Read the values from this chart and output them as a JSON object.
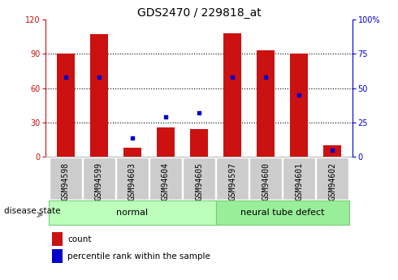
{
  "title": "GDS2470 / 229818_at",
  "categories": [
    "GSM94598",
    "GSM94599",
    "GSM94603",
    "GSM94604",
    "GSM94605",
    "GSM94597",
    "GSM94600",
    "GSM94601",
    "GSM94602"
  ],
  "count_values": [
    90,
    107,
    8,
    26,
    24,
    108,
    93,
    90,
    10
  ],
  "percentile_values": [
    58,
    58,
    14,
    29,
    32,
    58,
    58,
    45,
    5
  ],
  "left_ylim": [
    0,
    120
  ],
  "right_ylim": [
    0,
    100
  ],
  "left_yticks": [
    0,
    30,
    60,
    90,
    120
  ],
  "right_yticks": [
    0,
    25,
    50,
    75,
    100
  ],
  "bar_color": "#cc1111",
  "dot_color": "#0000cc",
  "bg_color": "#ffffff",
  "tick_bg": "#cccccc",
  "normal_group": [
    "GSM94598",
    "GSM94599",
    "GSM94603",
    "GSM94604",
    "GSM94605"
  ],
  "defect_group": [
    "GSM94597",
    "GSM94600",
    "GSM94601",
    "GSM94602"
  ],
  "normal_label": "normal",
  "defect_label": "neural tube defect",
  "disease_state_label": "disease state",
  "legend_count": "count",
  "legend_percentile": "percentile rank within the sample",
  "normal_color": "#bbffbb",
  "defect_color": "#99ee99",
  "bar_width": 0.55,
  "left_label_color": "#cc1111",
  "right_label_color": "#0000cc",
  "title_fontsize": 10,
  "tick_fontsize": 7,
  "axis_tick_fontsize": 7,
  "legend_fontsize": 7.5,
  "group_label_fontsize": 8,
  "disease_state_fontsize": 7.5
}
